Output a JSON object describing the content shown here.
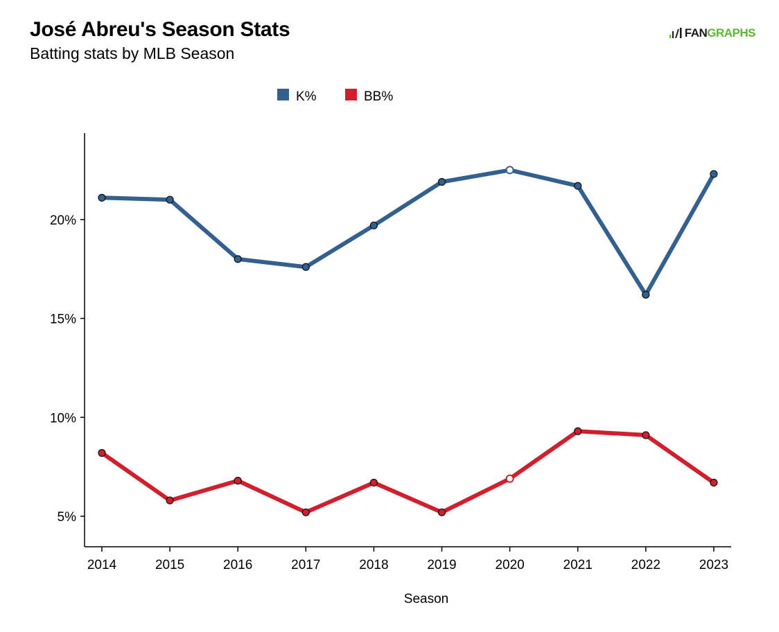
{
  "header": {
    "title": "José Abreu's Season Stats",
    "subtitle": "Batting stats by MLB Season"
  },
  "logo": {
    "part1": "FAN",
    "part2": "GRAPHS"
  },
  "chart_data": {
    "type": "line",
    "title": "José Abreu's Season Stats",
    "subtitle": "Batting stats by MLB Season",
    "xlabel": "Season",
    "ylabel": "",
    "categories": [
      "2014",
      "2015",
      "2016",
      "2017",
      "2018",
      "2019",
      "2020",
      "2021",
      "2022",
      "2023"
    ],
    "yticks": [
      5,
      10,
      15,
      20
    ],
    "ytick_labels": [
      "5%",
      "10%",
      "15%",
      "20%"
    ],
    "ylim": [
      3.5,
      23.6
    ],
    "grid": false,
    "legend": "top-center",
    "highlight_category": "2020",
    "series": [
      {
        "name": "K%",
        "color": "#34608f",
        "values": [
          21.1,
          21.0,
          18.0,
          17.6,
          19.7,
          21.9,
          22.5,
          21.7,
          16.2,
          22.3
        ]
      },
      {
        "name": "BB%",
        "color": "#d0202e",
        "values": [
          8.2,
          5.8,
          6.8,
          5.2,
          6.7,
          5.2,
          6.9,
          9.3,
          9.1,
          6.7
        ]
      }
    ]
  }
}
